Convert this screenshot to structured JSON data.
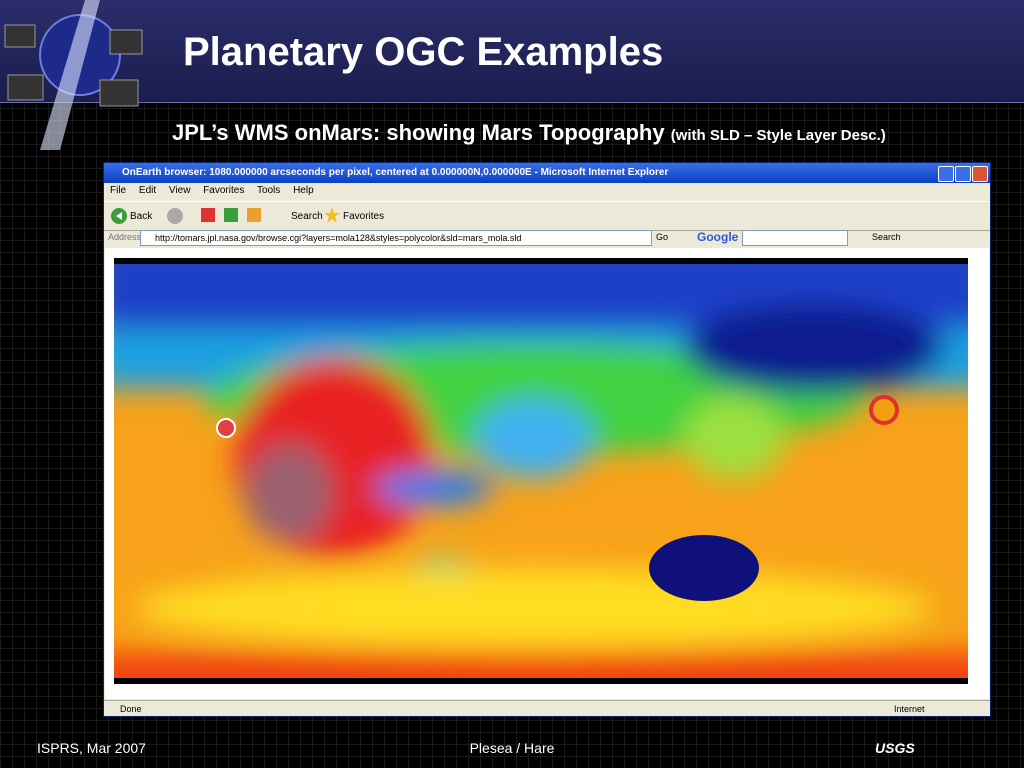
{
  "slide": {
    "title": "Planetary OGC Examples",
    "subtitle": "JPL’s WMS onMars: showing Mars Topography",
    "subtitle_note": "(with SLD – Style Layer Desc.)"
  },
  "browser": {
    "window_title": "OnEarth browser: 1080.000000 arcseconds per pixel, centered at 0.000000N,0.000000E - Microsoft Internet Explorer",
    "menu": [
      "File",
      "Edit",
      "View",
      "Favorites",
      "Tools",
      "Help"
    ],
    "toolbar": {
      "back": "Back",
      "search": "Search",
      "favorites": "Favorites"
    },
    "address_label": "Address",
    "url": "http://tomars.jpl.nasa.gov/browse.cgi?layers=mola128&styles=polycolor&sld=mars_mola.sld",
    "go": "Go",
    "google": "Google",
    "google_search": "Search",
    "status": "Done",
    "zone": "Internet"
  },
  "footer": {
    "left": "ISPRS, Mar 2007",
    "center": "Plesea / Hare",
    "logo": "USGS"
  }
}
